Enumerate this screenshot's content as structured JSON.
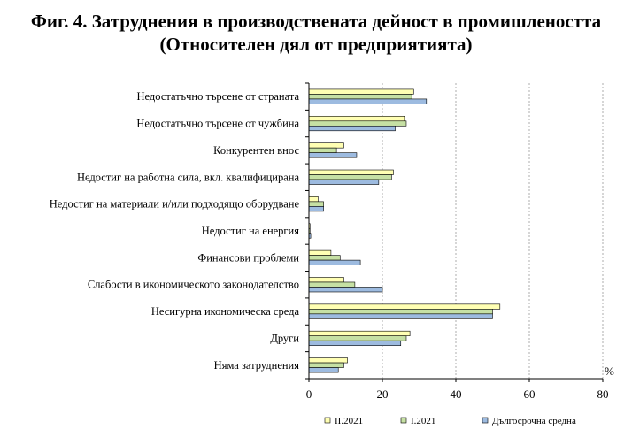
{
  "chart_data": {
    "type": "bar",
    "orientation": "horizontal",
    "title_line1": "Фиг. 4. Затруднения в производствената дейност в промишлеността",
    "title_line2": "(Относителен дял от предприятията)",
    "unit_label": "%",
    "categories": [
      "Недостатъчно търсене от страната",
      "Недостатъчно търсене от чужбина",
      "Конкурентен внос",
      "Недостиг на работна сила, вкл. квалифицирана",
      "Недостиг на материали и/или подходящо оборудване",
      "Недостиг на енергия",
      "Финансови проблеми",
      "Слабости в икономическото законодателство",
      "Несигурна икономическа среда",
      "Други",
      "Няма затруднения"
    ],
    "series": [
      {
        "name": "II.2021",
        "color": "#ffffb3",
        "values": [
          28.5,
          26.0,
          9.5,
          23.0,
          2.5,
          0.3,
          6.0,
          9.5,
          52.0,
          27.5,
          10.5
        ]
      },
      {
        "name": "I.2021",
        "color": "#c6e0a4",
        "values": [
          28.0,
          26.5,
          7.5,
          22.5,
          4.0,
          0.3,
          8.5,
          12.5,
          50.0,
          26.5,
          9.5
        ]
      },
      {
        "name": "Дългосрочна средна",
        "color": "#9dbbe0",
        "values": [
          32.0,
          23.5,
          13.0,
          19.0,
          4.0,
          0.5,
          14.0,
          20.0,
          50.0,
          25.0,
          8.0
        ]
      }
    ],
    "xlim": [
      0,
      80
    ],
    "xticks": [
      0,
      20,
      40,
      60,
      80
    ],
    "gridlines": "vertical dashed",
    "legend_position": "bottom"
  }
}
